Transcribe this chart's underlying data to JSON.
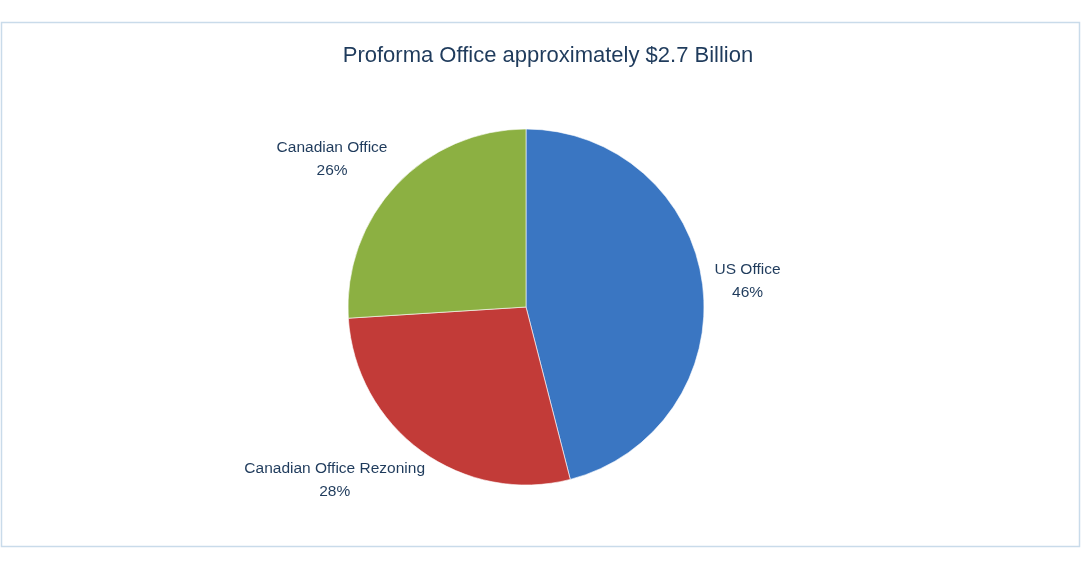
{
  "chart_data": {
    "type": "pie",
    "title": "Proforma Office approximately $2.7 Billion",
    "categories": [
      "US Office",
      "Canadian Office Rezoning",
      "Canadian Office"
    ],
    "values": [
      46,
      28,
      26
    ],
    "colors": [
      "#3a76c2",
      "#c23b38",
      "#8cb042"
    ],
    "value_labels": [
      "46%",
      "28%",
      "26%"
    ]
  }
}
